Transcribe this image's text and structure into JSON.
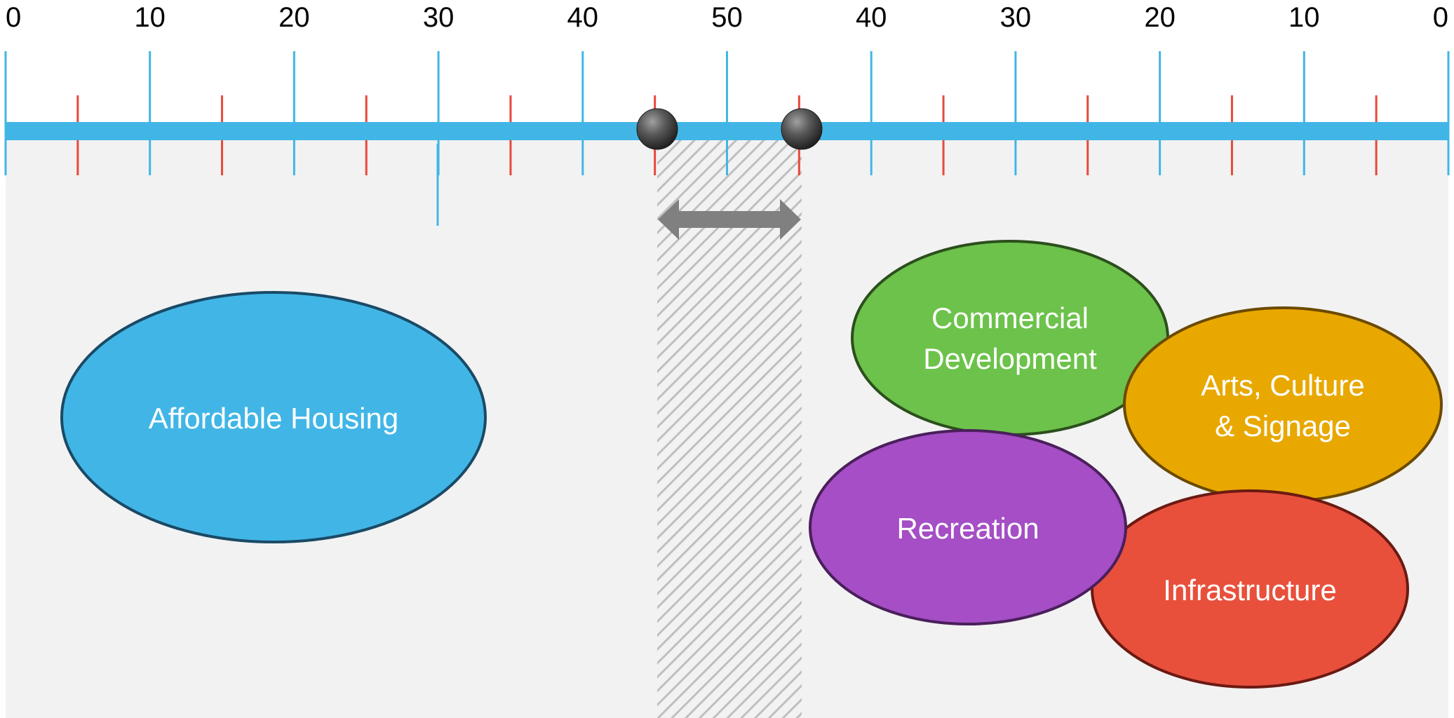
{
  "scale": {
    "tick_labels": [
      "0",
      "10",
      "20",
      "30",
      "40",
      "50",
      "40",
      "30",
      "20",
      "10",
      "0"
    ],
    "major_tick_color": "#41b6e6",
    "minor_tick_color": "#e8493a",
    "track_color": "#41b6e6"
  },
  "range_handles": {
    "start": 45,
    "end": 55
  },
  "bubbles": [
    {
      "id": "affordable-housing",
      "lines": [
        "Affordable Housing"
      ],
      "fill": "#41b6e6",
      "stroke": "#1a4a66"
    },
    {
      "id": "commercial-development",
      "lines": [
        "Commercial",
        "Development"
      ],
      "fill": "#6cc24a",
      "stroke": "#2c4f1d"
    },
    {
      "id": "arts-culture-signage",
      "lines": [
        "Arts, Culture",
        "& Signage"
      ],
      "fill": "#e8a800",
      "stroke": "#6b4a00"
    },
    {
      "id": "recreation",
      "lines": [
        "Recreation"
      ],
      "fill": "#a54ec5",
      "stroke": "#4a1f5c"
    },
    {
      "id": "infrastructure",
      "lines": [
        "Infrastructure"
      ],
      "fill": "#e8503c",
      "stroke": "#6b1a12"
    }
  ]
}
